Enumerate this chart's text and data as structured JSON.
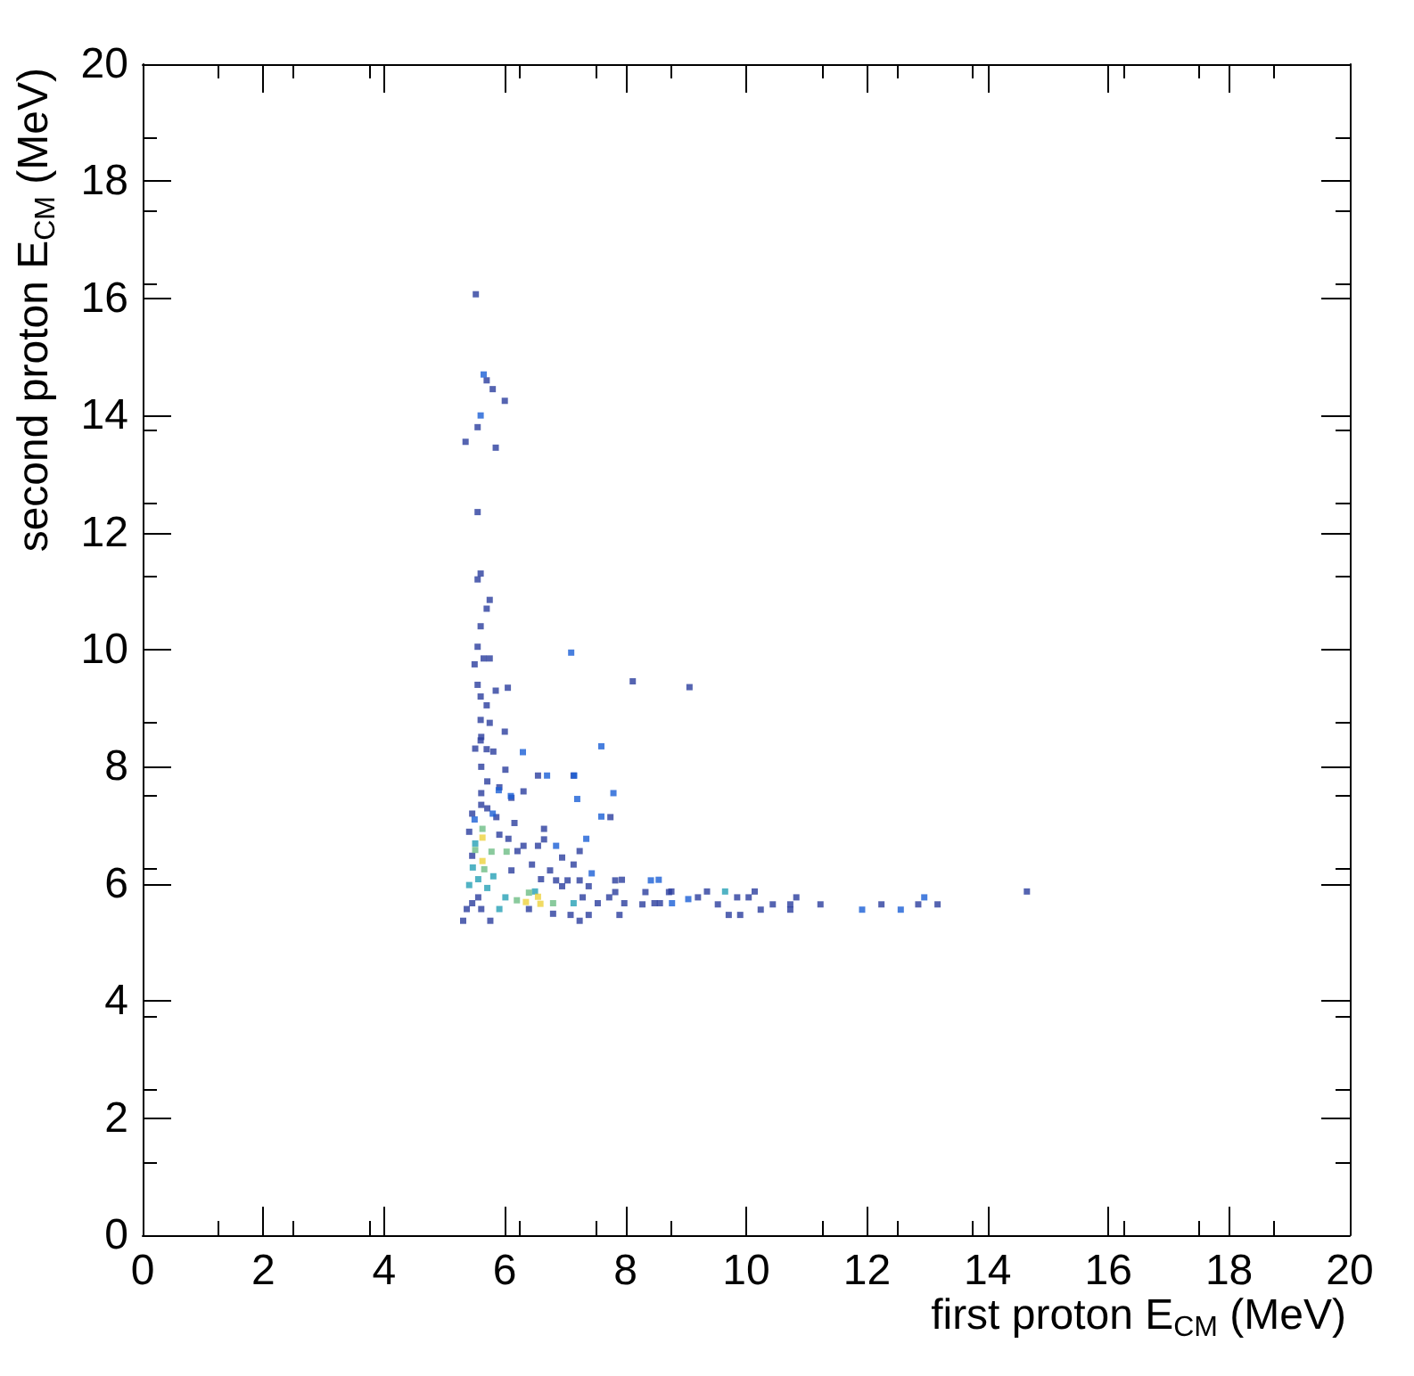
{
  "chart_data": {
    "type": "scatter",
    "xlabel": "first proton E$_{CM}$ (MeV)",
    "ylabel": "second proton E$_{CM}$ (MeV)",
    "marker": "square",
    "grid": false,
    "xlim": [
      0,
      20
    ],
    "ylim": [
      0,
      20
    ],
    "xticks": [
      0,
      2,
      4,
      6,
      8,
      10,
      12,
      14,
      16,
      18,
      20
    ],
    "yticks": [
      0,
      2,
      4,
      6,
      8,
      10,
      12,
      14,
      16,
      18,
      20
    ],
    "series": [
      {
        "color": "#2a3d9e",
        "x": [
          5.52,
          5.7,
          5.8,
          6.0,
          5.55,
          5.35,
          5.85,
          5.55,
          5.6,
          5.55,
          5.75,
          5.7,
          5.6,
          5.55,
          5.5,
          5.65,
          5.75,
          5.55,
          5.85,
          6.05,
          8.12,
          9.06,
          5.6,
          5.7,
          5.6,
          5.75,
          6.0,
          5.6,
          5.7,
          5.61,
          5.51,
          5.81,
          5.61,
          6.01,
          6.55,
          7.14,
          5.71,
          5.91,
          6.31,
          5.61,
          6.11,
          5.61,
          5.46,
          5.86,
          6.16,
          7.75,
          6.65,
          5.91,
          6.06,
          6.65,
          6.31,
          6.55,
          7.24,
          6.21,
          6.95,
          6.45,
          7.14,
          6.75,
          6.11,
          6.6,
          6.85,
          7.04,
          7.24,
          7.83,
          6.95,
          7.39,
          7.83,
          8.33,
          8.72,
          7.29,
          7.73,
          7.54,
          7.98,
          8.28,
          8.57,
          5.46,
          5.37,
          5.61,
          6.4,
          6.8,
          7.09,
          7.39,
          5.31,
          5.76,
          7.24,
          7.9,
          5.56,
          5.71,
          5.46,
          5.41,
          8.76,
          9.35,
          10.14,
          10.83,
          11.23,
          12.24,
          12.85,
          13.17,
          14.65,
          9.85,
          10.04,
          9.53,
          10.24,
          10.44,
          10.73,
          10.73,
          9.71,
          9.9,
          9.2,
          8.48,
          7.94
        ],
        "values": [
          16.07,
          14.6,
          14.45,
          14.25,
          13.8,
          13.55,
          13.45,
          12.35,
          11.3,
          11.2,
          10.85,
          10.7,
          10.4,
          10.05,
          9.75,
          9.85,
          9.85,
          9.4,
          9.3,
          9.35,
          9.46,
          9.36,
          9.2,
          9.05,
          8.8,
          8.75,
          8.6,
          8.45,
          8.3,
          8.51,
          8.31,
          8.26,
          8.0,
          7.95,
          7.85,
          7.85,
          7.75,
          7.65,
          7.58,
          7.55,
          7.47,
          7.35,
          7.2,
          7.14,
          7.04,
          7.14,
          6.94,
          6.84,
          6.77,
          6.76,
          6.65,
          6.65,
          6.56,
          6.56,
          6.45,
          6.33,
          6.33,
          6.23,
          6.23,
          6.08,
          6.06,
          6.06,
          6.06,
          6.06,
          5.96,
          5.96,
          5.86,
          5.86,
          5.86,
          5.77,
          5.77,
          5.67,
          5.67,
          5.65,
          5.67,
          5.67,
          5.57,
          5.57,
          5.57,
          5.49,
          5.47,
          5.47,
          5.37,
          5.37,
          5.37,
          5.47,
          5.77,
          7.29,
          6.48,
          6.89,
          5.87,
          5.87,
          5.87,
          5.77,
          5.65,
          5.65,
          5.65,
          5.65,
          5.87,
          5.77,
          5.77,
          5.65,
          5.56,
          5.65,
          5.65,
          5.56,
          5.47,
          5.47,
          5.77,
          5.67,
          6.07
        ]
      },
      {
        "color": "#1a5fd6",
        "x": [
          5.65,
          5.6,
          7.1,
          6.3,
          7.6,
          6.7,
          7.15,
          5.9,
          6.1,
          7.8,
          7.2,
          5.5,
          5.8,
          7.6,
          7.35,
          6.85,
          7.44,
          8.42,
          11.92,
          12.56,
          12.95,
          9.04,
          8.77,
          8.55
        ],
        "values": [
          14.7,
          14.0,
          9.95,
          8.25,
          8.35,
          7.85,
          7.85,
          7.6,
          7.5,
          7.55,
          7.45,
          7.1,
          7.2,
          7.15,
          6.77,
          6.65,
          6.18,
          6.06,
          5.56,
          5.56,
          5.77,
          5.74,
          5.67,
          6.07
        ]
      },
      {
        "color": "#25a0b5",
        "x": [
          5.47,
          5.56,
          5.81,
          6.01,
          6.5,
          7.14,
          5.91,
          5.71,
          5.51,
          5.41,
          9.65
        ],
        "values": [
          6.28,
          6.08,
          6.13,
          5.77,
          5.87,
          5.67,
          5.57,
          5.93,
          6.69,
          5.98,
          5.87
        ]
      },
      {
        "color": "#6dbd84",
        "x": [
          5.63,
          5.51,
          5.78,
          5.66,
          6.03,
          6.2,
          6.8,
          6.4
        ],
        "values": [
          6.94,
          6.58,
          6.55,
          6.25,
          6.55,
          5.72,
          5.67,
          5.85
        ]
      },
      {
        "color": "#eed23c",
        "x": [
          5.63,
          5.63,
          6.35,
          6.59,
          6.55
        ],
        "values": [
          6.79,
          6.39,
          5.69,
          5.66,
          5.78
        ]
      }
    ]
  }
}
